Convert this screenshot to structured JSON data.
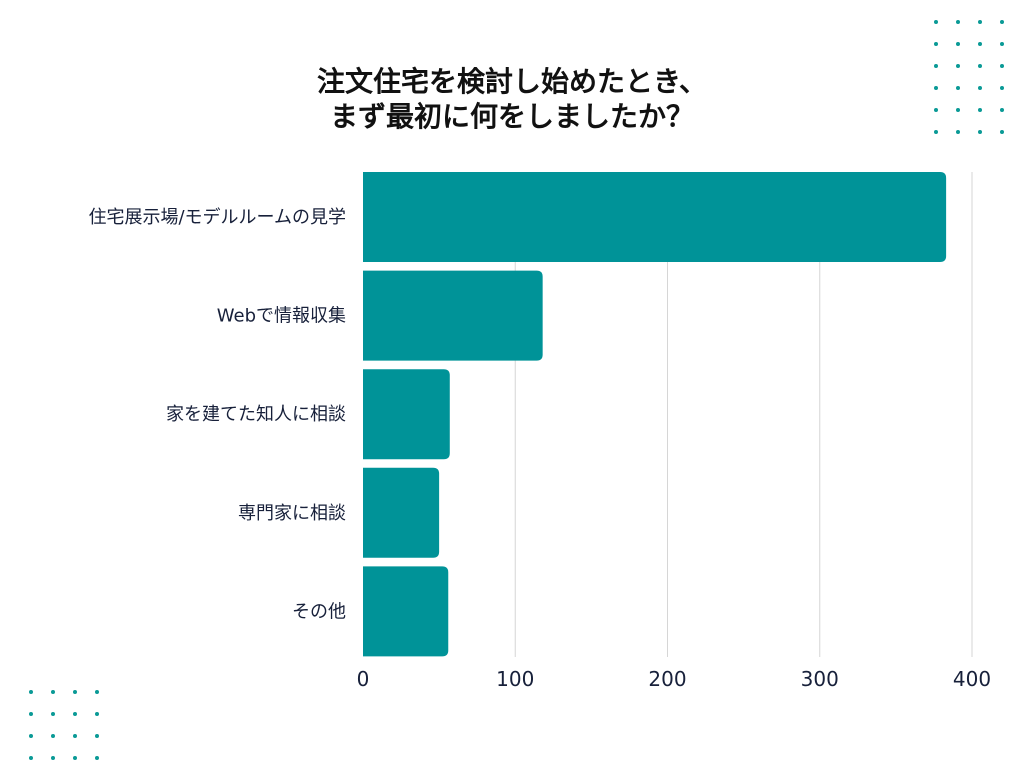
{
  "title_lines": [
    "注文住宅を検討し始めたとき、",
    "まず最初に何をしましたか？"
  ],
  "colors": {
    "bar": "#009398",
    "grid": "#d6d6d6",
    "dots": "#0a9a96",
    "text": "#17203a",
    "title": "#111111"
  },
  "chart_data": {
    "type": "bar",
    "orientation": "horizontal",
    "title": "注文住宅を検討し始めたとき、まず最初に何をしましたか？",
    "categories": [
      "住宅展示場/モデルルームの見学",
      "Webで情報収集",
      "家を建てた知人に相談",
      "専門家に相談",
      "その他"
    ],
    "values": [
      383,
      118,
      57,
      50,
      56
    ],
    "xlim": [
      0,
      400
    ],
    "xticks": [
      0,
      100,
      200,
      300,
      400
    ],
    "grid": true,
    "legend": "none"
  }
}
